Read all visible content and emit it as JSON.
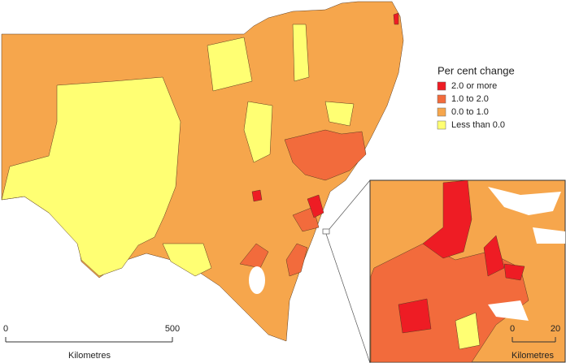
{
  "legend": {
    "title": "Per cent change",
    "items": [
      {
        "label": "2.0 or more",
        "color": "#ee1c24"
      },
      {
        "label": "1.0 to 2.0",
        "color": "#f26b3c"
      },
      {
        "label": "0.0 to 1.0",
        "color": "#f6a64c"
      },
      {
        "label": "Less than 0.0",
        "color": "#ffff73"
      }
    ]
  },
  "scale_bar": {
    "ticks": [
      0,
      500
    ],
    "unit": "Kilometres"
  },
  "inset_scale_bar": {
    "ticks": [
      0,
      20
    ],
    "unit": "Kilometres"
  }
}
